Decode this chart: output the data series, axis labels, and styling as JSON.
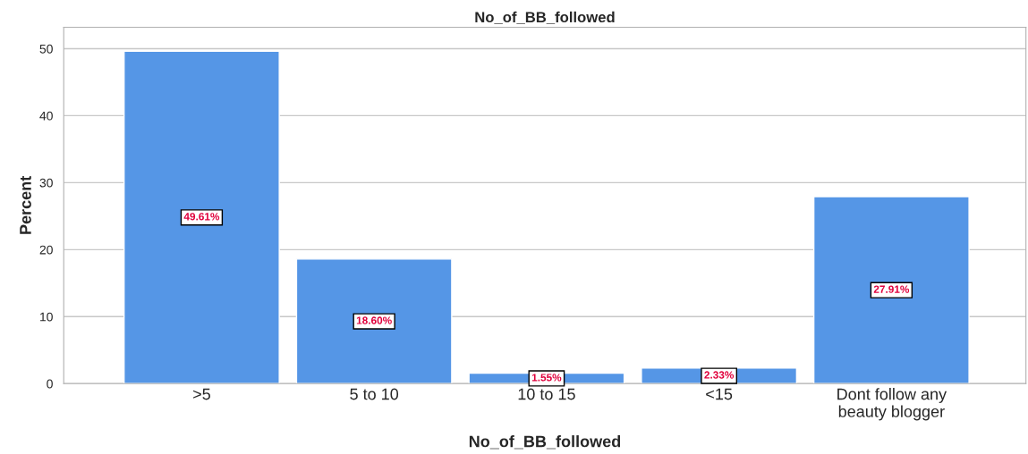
{
  "chart_data": {
    "type": "bar",
    "title": "No_of_BB_followed",
    "xlabel": "No_of_BB_followed",
    "ylabel": "Percent",
    "categories": [
      ">5",
      "5 to 10",
      "10 to 15",
      "<15",
      "Dont follow any\nbeauty blogger"
    ],
    "values": [
      49.61,
      18.6,
      1.55,
      2.33,
      27.91
    ],
    "value_labels": [
      "49.61%",
      "18.60%",
      "1.55%",
      "2.33%",
      "27.91%"
    ],
    "color": "#5596e6",
    "ylim": [
      0,
      53.2
    ],
    "yticks": [
      0,
      10,
      20,
      30,
      40,
      50
    ],
    "grid": "y",
    "legend": false
  }
}
